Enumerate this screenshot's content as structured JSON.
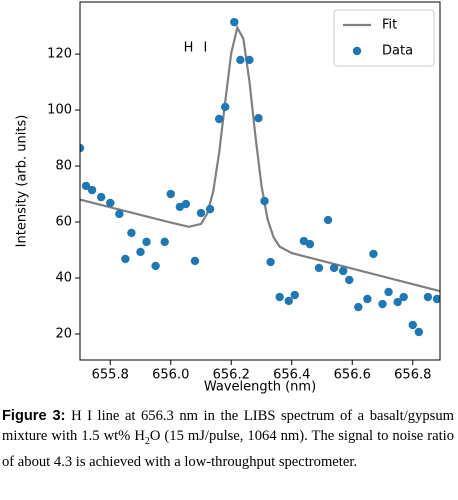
{
  "chart_data": {
    "type": "line",
    "xlabel": "Wavelength (nm)",
    "ylabel": "Intensity (arb. units)",
    "annotation": "H I",
    "xlim": [
      655.7,
      656.89
    ],
    "xticks": [
      {
        "value": 655.8,
        "label": "655.8"
      },
      {
        "value": 656.0,
        "label": "656.0"
      },
      {
        "value": 656.2,
        "label": "656.2"
      },
      {
        "value": 656.4,
        "label": "656.4"
      },
      {
        "value": 656.6,
        "label": "656.6"
      },
      {
        "value": 656.8,
        "label": "656.8"
      }
    ],
    "ylim": [
      10.7,
      138.6
    ],
    "yticks": [
      20,
      40,
      60,
      80,
      100,
      120
    ],
    "legend": "upper right",
    "series": [
      {
        "name": "Fit",
        "kind": "line",
        "color": "#808080",
        "x": [
          655.7,
          656.0,
          656.06,
          656.1,
          656.12,
          656.14,
          656.16,
          656.18,
          656.2,
          656.22,
          656.24,
          656.26,
          656.28,
          656.3,
          656.32,
          656.34,
          656.36,
          656.4,
          656.89
        ],
        "values": [
          68.0,
          59.8,
          58.3,
          59.3,
          62.9,
          70.7,
          84.7,
          103.0,
          120.4,
          129.4,
          125.5,
          110.3,
          90.6,
          72.9,
          61.0,
          54.5,
          51.2,
          48.9,
          35.3
        ]
      },
      {
        "name": "Data",
        "kind": "scatter",
        "color": "#1f77b4",
        "x": [
          655.7,
          655.72,
          655.74,
          655.77,
          655.8,
          655.83,
          655.85,
          655.87,
          655.9,
          655.92,
          655.95,
          655.98,
          656.0,
          656.03,
          656.05,
          656.08,
          656.1,
          656.13,
          656.16,
          656.18,
          656.21,
          656.23,
          656.26,
          656.29,
          656.31,
          656.33,
          656.36,
          656.39,
          656.41,
          656.44,
          656.46,
          656.49,
          656.52,
          656.54,
          656.57,
          656.59,
          656.62,
          656.65,
          656.67,
          656.7,
          656.72,
          656.75,
          656.77,
          656.8,
          656.82,
          656.85,
          656.88
        ],
        "values": [
          86.4,
          72.9,
          71.4,
          68.9,
          66.8,
          62.9,
          46.8,
          56.1,
          49.3,
          52.9,
          44.3,
          52.9,
          70.0,
          65.4,
          66.4,
          46.1,
          63.2,
          64.6,
          96.8,
          101.1,
          131.4,
          117.9,
          117.9,
          97.1,
          67.5,
          45.7,
          33.2,
          31.8,
          33.9,
          53.2,
          52.1,
          43.6,
          60.7,
          43.6,
          42.5,
          39.3,
          29.6,
          32.5,
          48.6,
          30.7,
          35.0,
          31.4,
          33.2,
          23.2,
          20.7,
          33.2,
          32.5
        ]
      }
    ]
  },
  "caption": {
    "label": "Figure 3:",
    "text_before": "H I line at 656.3 nm in the LIBS spectrum of a basalt/gypsum mixture with 1.5 wt% H",
    "subscript": "2",
    "text_after": "O (15 mJ/pulse, 1064 nm). The signal to noise ratio of about 4.3 is achieved with a low-throughput spectrometer."
  }
}
